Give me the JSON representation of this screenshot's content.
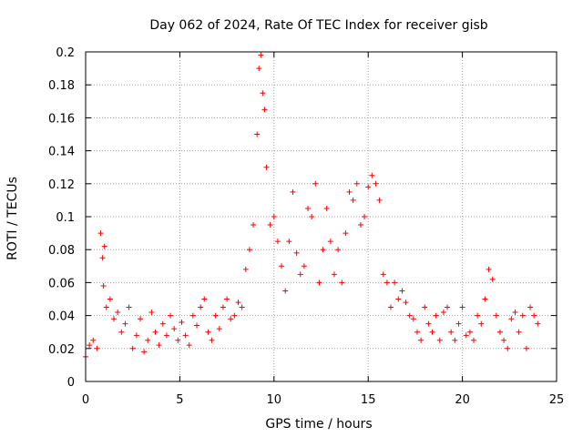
{
  "chart_data": {
    "type": "scatter",
    "title": "Day 062 of 2024, Rate Of TEC Index for receiver gisb",
    "xlabel": "GPS time / hours",
    "ylabel": "ROTI / TECUs",
    "xlim": [
      0,
      25
    ],
    "ylim": [
      0,
      0.2
    ],
    "x_ticks": [
      0,
      5,
      10,
      15,
      20,
      25
    ],
    "x_tick_labels": [
      "0",
      "5",
      "10",
      "15",
      "20",
      "25"
    ],
    "y_ticks": [
      0,
      0.02,
      0.04,
      0.06,
      0.08,
      0.1,
      0.12,
      0.14,
      0.16,
      0.18,
      0.2
    ],
    "y_tick_labels": [
      "0",
      "0.02",
      "0.04",
      "0.06",
      "0.08",
      "0.1",
      "0.12",
      "0.14",
      "0.16",
      "0.18",
      "0.2"
    ],
    "grid": true,
    "marker": "+",
    "marker_color": "#ff0000",
    "series": [
      {
        "x": [
          0.0,
          0.2,
          0.4,
          0.6,
          0.8,
          0.9,
          0.95,
          1.0,
          1.1,
          1.3,
          1.5,
          1.7,
          1.9,
          2.1,
          2.3,
          2.5,
          2.7,
          2.9,
          3.1,
          3.3,
          3.5,
          3.7,
          3.9,
          4.1,
          4.3,
          4.5,
          4.7,
          4.9,
          5.1,
          5.3,
          5.5,
          5.7,
          5.9,
          6.1,
          6.3,
          6.5,
          6.7,
          6.9,
          7.1,
          7.3,
          7.5,
          7.7,
          7.9,
          8.1,
          8.3,
          8.5,
          8.7,
          8.9,
          9.1,
          9.2,
          9.3,
          9.4,
          9.5,
          9.6,
          9.8,
          10.0,
          10.2,
          10.4,
          10.6,
          10.8,
          11.0,
          11.2,
          11.4,
          11.6,
          11.8,
          12.0,
          12.2,
          12.4,
          12.6,
          12.8,
          13.0,
          13.2,
          13.4,
          13.6,
          13.8,
          14.0,
          14.2,
          14.4,
          14.6,
          14.8,
          15.0,
          15.2,
          15.4,
          15.6,
          15.8,
          16.0,
          16.2,
          16.4,
          16.6,
          16.8,
          17.0,
          17.2,
          17.4,
          17.6,
          17.8,
          18.0,
          18.2,
          18.4,
          18.6,
          18.8,
          19.0,
          19.2,
          19.4,
          19.6,
          19.8,
          20.0,
          20.2,
          20.4,
          20.6,
          20.8,
          21.0,
          21.2,
          21.4,
          21.6,
          21.8,
          22.0,
          22.2,
          22.4,
          22.6,
          22.8,
          23.0,
          23.2,
          23.4,
          23.6,
          23.8,
          24.0
        ],
        "y": [
          0.015,
          0.022,
          0.025,
          0.02,
          0.09,
          0.075,
          0.058,
          0.082,
          0.045,
          0.05,
          0.038,
          0.042,
          0.03,
          0.035,
          0.045,
          0.02,
          0.028,
          0.038,
          0.018,
          0.025,
          0.042,
          0.03,
          0.022,
          0.035,
          0.028,
          0.04,
          0.032,
          0.025,
          0.036,
          0.028,
          0.022,
          0.04,
          0.034,
          0.045,
          0.05,
          0.03,
          0.025,
          0.04,
          0.032,
          0.045,
          0.05,
          0.038,
          0.04,
          0.048,
          0.045,
          0.068,
          0.08,
          0.095,
          0.15,
          0.19,
          0.198,
          0.175,
          0.165,
          0.13,
          0.095,
          0.1,
          0.085,
          0.07,
          0.055,
          0.085,
          0.115,
          0.078,
          0.065,
          0.07,
          0.105,
          0.1,
          0.12,
          0.06,
          0.08,
          0.105,
          0.085,
          0.065,
          0.08,
          0.06,
          0.09,
          0.115,
          0.11,
          0.12,
          0.095,
          0.1,
          0.118,
          0.125,
          0.12,
          0.11,
          0.065,
          0.06,
          0.045,
          0.06,
          0.05,
          0.055,
          0.048,
          0.04,
          0.038,
          0.03,
          0.025,
          0.045,
          0.035,
          0.03,
          0.04,
          0.025,
          0.042,
          0.045,
          0.03,
          0.025,
          0.035,
          0.045,
          0.028,
          0.03,
          0.025,
          0.04,
          0.035,
          0.05,
          0.068,
          0.062,
          0.04,
          0.03,
          0.025,
          0.02,
          0.038,
          0.042,
          0.03,
          0.04,
          0.02,
          0.045,
          0.04,
          0.035
        ]
      }
    ]
  }
}
